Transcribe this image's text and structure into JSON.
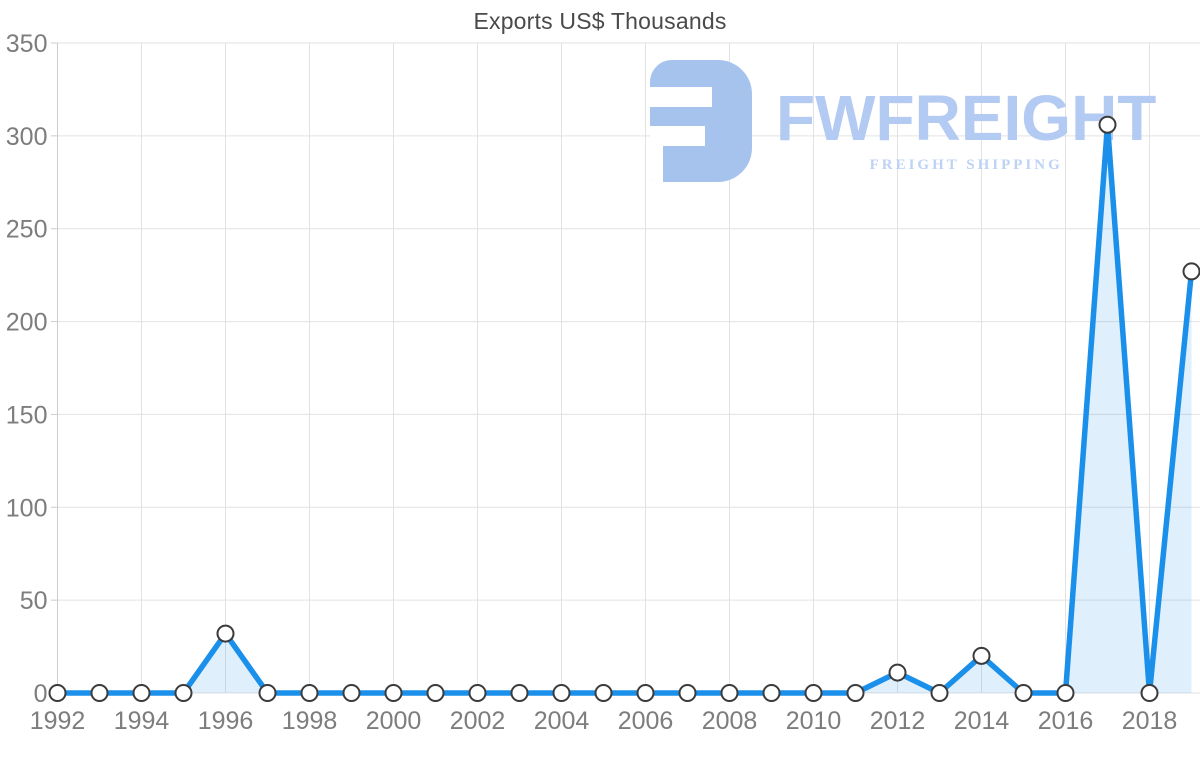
{
  "title": "Exports US$ Thousands",
  "watermark": {
    "brand": "FWFREIGHT",
    "tagline": "FREIGHT SHIPPING",
    "mark_color": "#a6c3ee",
    "brand_color": "#b3caf3",
    "tagline_color": "#bdd2f4"
  },
  "chart_data": {
    "type": "area",
    "title": "Exports US$ Thousands",
    "xlabel": "",
    "ylabel": "",
    "x": [
      1992,
      1993,
      1994,
      1995,
      1996,
      1997,
      1998,
      1999,
      2000,
      2001,
      2002,
      2003,
      2004,
      2005,
      2006,
      2007,
      2008,
      2009,
      2010,
      2011,
      2012,
      2013,
      2014,
      2015,
      2016,
      2017,
      2018,
      2019
    ],
    "values": [
      0,
      0,
      0,
      0,
      32,
      0,
      0,
      0,
      0,
      0,
      0,
      0,
      0,
      0,
      0,
      0,
      0,
      0,
      0,
      0,
      11,
      0,
      20,
      0,
      0,
      306,
      0,
      227
    ],
    "ylim": [
      0,
      350
    ],
    "y_ticks": [
      0,
      50,
      100,
      150,
      200,
      250,
      300,
      350
    ],
    "x_tick_labels": [
      "1992",
      "1994",
      "1996",
      "1998",
      "2000",
      "2002",
      "2004",
      "2006",
      "2008",
      "2010",
      "2012",
      "2014",
      "2016",
      "2018"
    ],
    "grid": true,
    "legend": "none",
    "line_color": "#1b90eb",
    "fill_color": "rgba(27,144,235,0.14)",
    "marker_fill": "#ffffff",
    "marker_stroke": "#3b3b3b",
    "grid_color": "#e2e2e2",
    "axis_color": "#cccccc",
    "tick_label_color": "#7d7d7d",
    "title_color": "#4a4a4a"
  }
}
